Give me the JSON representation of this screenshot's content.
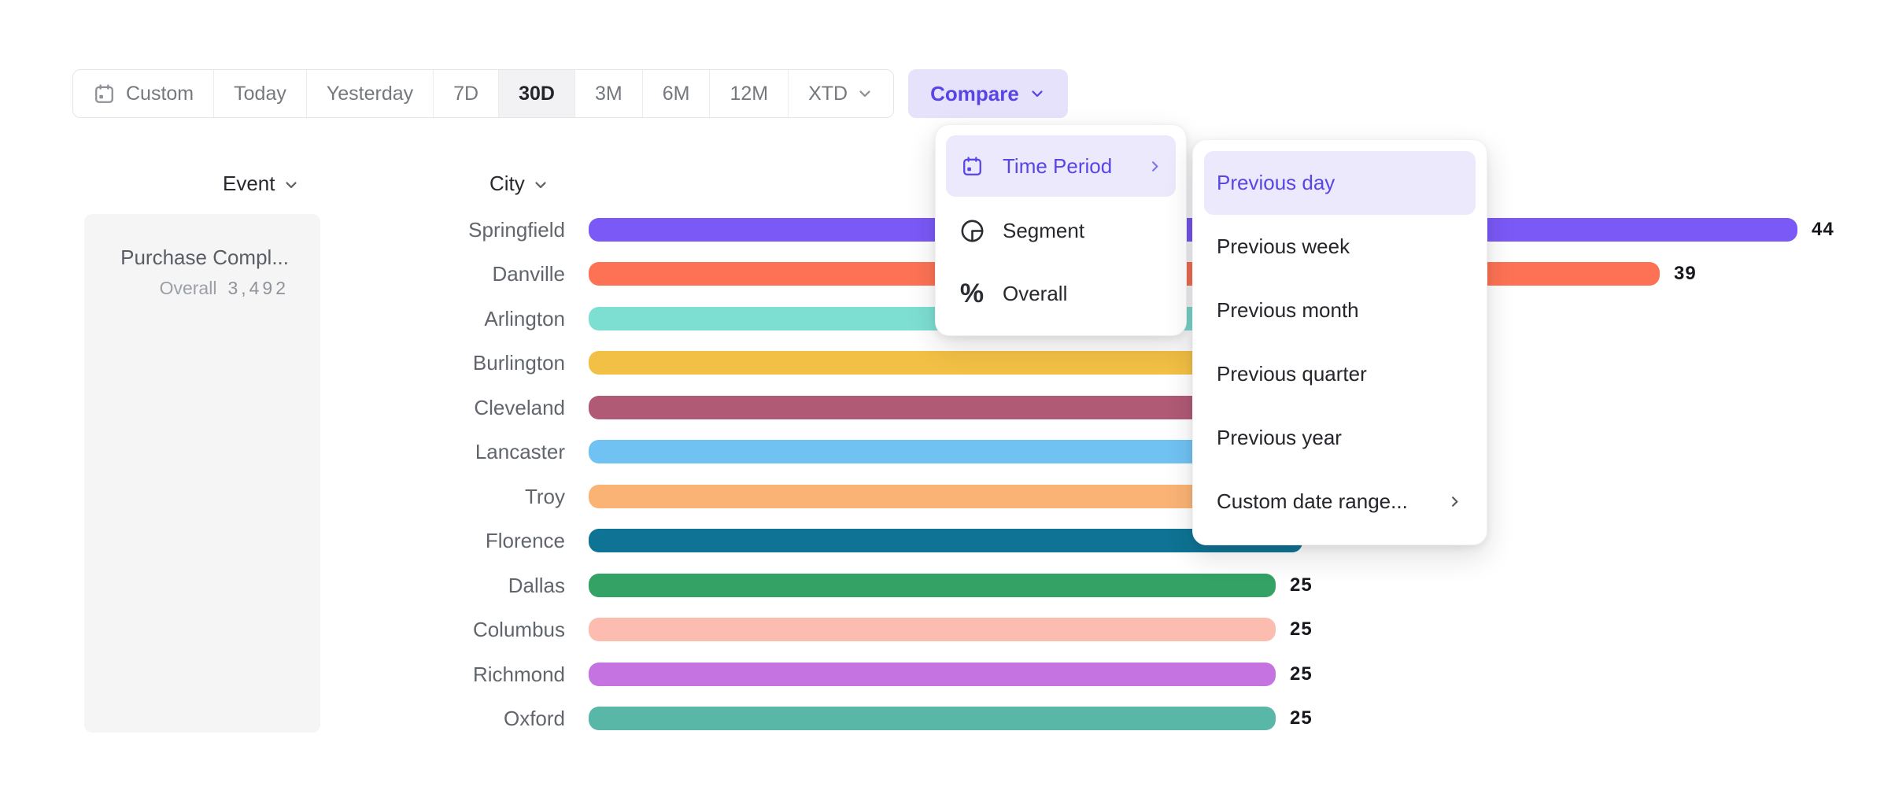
{
  "accent_color": "#5746E5",
  "accent_bg_color": "#ECE9FC",
  "toolbar": {
    "items": [
      {
        "label": "Custom",
        "icon": "calendar",
        "active": false
      },
      {
        "label": "Today",
        "active": false
      },
      {
        "label": "Yesterday",
        "active": false
      },
      {
        "label": "7D",
        "active": false
      },
      {
        "label": "30D",
        "active": true
      },
      {
        "label": "3M",
        "active": false
      },
      {
        "label": "6M",
        "active": false
      },
      {
        "label": "12M",
        "active": false
      },
      {
        "label": "XTD",
        "chevron": true,
        "active": false
      }
    ],
    "compare_label": "Compare"
  },
  "compare_menu": {
    "items": [
      {
        "label": "Time Period",
        "icon": "calendar",
        "selected": true,
        "has_submenu": true
      },
      {
        "label": "Segment",
        "icon": "segment",
        "selected": false,
        "has_submenu": false
      },
      {
        "label": "Overall",
        "icon": "percent",
        "selected": false,
        "has_submenu": false
      }
    ]
  },
  "time_period_submenu": {
    "items": [
      {
        "label": "Previous day",
        "selected": true,
        "has_submenu": false
      },
      {
        "label": "Previous week",
        "selected": false,
        "has_submenu": false
      },
      {
        "label": "Previous month",
        "selected": false,
        "has_submenu": false
      },
      {
        "label": "Previous quarter",
        "selected": false,
        "has_submenu": false
      },
      {
        "label": "Previous year",
        "selected": false,
        "has_submenu": false
      },
      {
        "label": "Custom date range...",
        "selected": false,
        "has_submenu": true
      }
    ]
  },
  "events": {
    "header": "Event",
    "event_name": "Purchase Compl...",
    "overall_label": "Overall",
    "overall_value": "3,492"
  },
  "chart_data": {
    "type": "bar",
    "orientation": "horizontal",
    "group_label": "City",
    "categories": [
      "Springfield",
      "Danville",
      "Arlington",
      "Burlington",
      "Cleveland",
      "Lancaster",
      "Troy",
      "Florence",
      "Dallas",
      "Columbus",
      "Richmond",
      "Oxford"
    ],
    "values": [
      44,
      39,
      32,
      31,
      30,
      29,
      27,
      26,
      25,
      25,
      25,
      25
    ],
    "visible_value_labels": [
      "44",
      "39",
      "",
      "",
      "",
      "",
      "",
      "",
      "25",
      "25",
      "25",
      "25"
    ],
    "colors": [
      "#7A59F6",
      "#FD7254",
      "#7DDFD2",
      "#F2C044",
      "#B05A75",
      "#70C2F3",
      "#FBB375",
      "#0E7394",
      "#33A264",
      "#FCBCB0",
      "#C473E1",
      "#58B7A7"
    ],
    "xlim": [
      0,
      44
    ],
    "grid": false,
    "legend": false
  }
}
